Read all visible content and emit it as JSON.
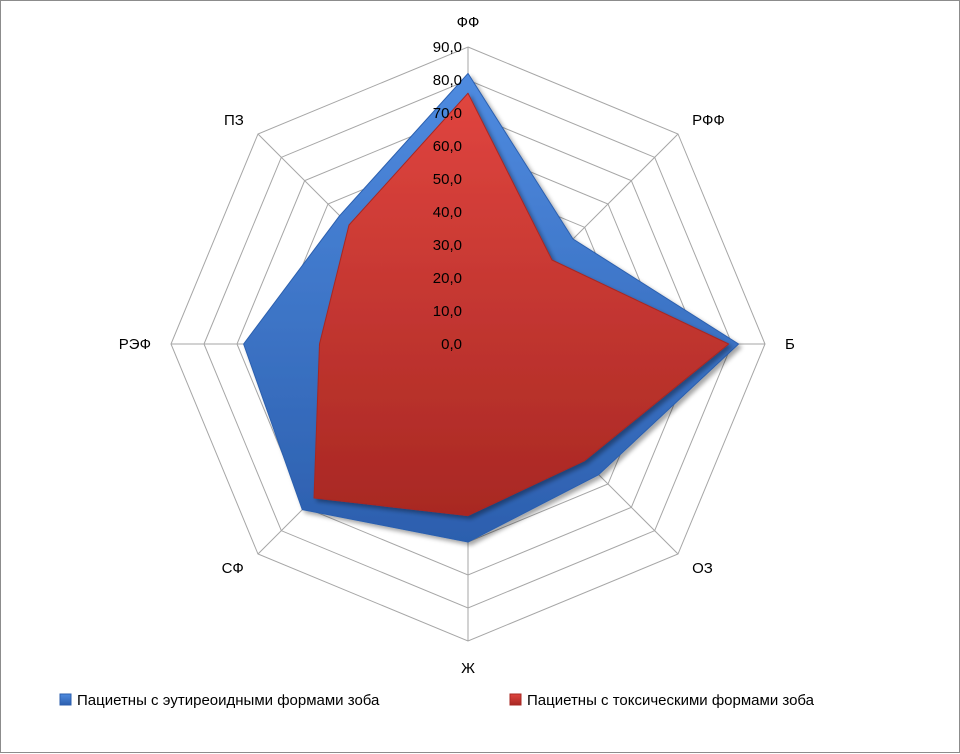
{
  "chart_data": {
    "type": "radar",
    "title": "",
    "categories": [
      "ФФ",
      "РФФ",
      "Б",
      "ОЗ",
      "Ж",
      "СФ",
      "РЭФ",
      "ПЗ"
    ],
    "ylim": [
      0,
      90
    ],
    "ticks": [
      "0,0",
      "10,0",
      "20,0",
      "30,0",
      "40,0",
      "50,0",
      "60,0",
      "70,0",
      "80,0",
      "90,0"
    ],
    "tick_values": [
      0,
      10,
      20,
      30,
      40,
      50,
      60,
      70,
      80,
      90
    ],
    "grid": true,
    "legend_position": "bottom",
    "series": [
      {
        "name": "Пациетны с эутиреоидными формами зоба",
        "color": "#3a72c8",
        "values": [
          82,
          45,
          82,
          56,
          60,
          71,
          68,
          55
        ]
      },
      {
        "name": "Пациетны с токсическими формами зоба",
        "color": "#c8322e",
        "values": [
          76,
          36,
          79,
          50,
          52,
          66,
          45,
          51
        ]
      }
    ]
  }
}
